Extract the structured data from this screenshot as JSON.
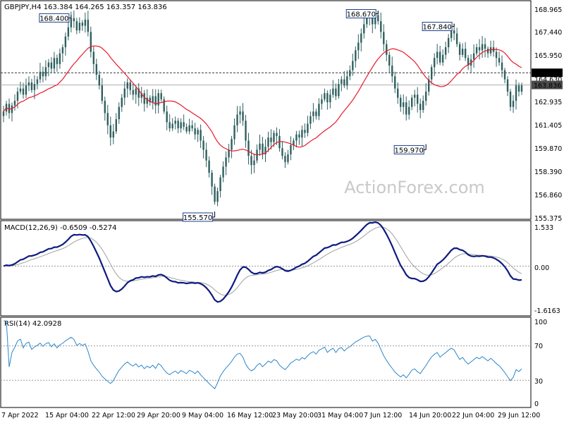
{
  "chart_data": {
    "type": "candlestick",
    "watermark": "ActionForex.com",
    "x_ticks": [
      "7 Apr 2022",
      "15 Apr 04:00",
      "22 Apr 12:00",
      "29 Apr 20:00",
      "9 May 04:00",
      "16 May 12:00",
      "23 May 20:00",
      "31 May 04:00",
      "7 Jun 12:00",
      "14 Jun 20:00",
      "22 Jun 04:00",
      "29 Jun 12:00"
    ],
    "price_panel": {
      "header": "GBPJPY,H4  163.384 164.265 163.357 163.836",
      "y_ticks": [
        "168.965",
        "167.440",
        "165.950",
        "164.630",
        "162.935",
        "161.405",
        "159.870",
        "158.390",
        "156.860",
        "155.375"
      ],
      "ylim": [
        155.2,
        169.2
      ],
      "current_price": 163.836,
      "current_price_label": "163.836",
      "level_line": 164.63,
      "level_line_label": "164.630",
      "swing_labels": [
        {
          "text": "168.400",
          "value": 168.4,
          "bar": 24
        },
        {
          "text": "155.570",
          "value": 155.57,
          "bar": 75
        },
        {
          "text": "168.670",
          "value": 168.67,
          "bar": 133
        },
        {
          "text": "159.970",
          "value": 159.97,
          "bar": 150
        },
        {
          "text": "167.840",
          "value": 167.84,
          "bar": 160
        }
      ],
      "ma_color": "#e8192c",
      "candle_color": "#2f5f5f",
      "closes": [
        162.1,
        162.6,
        162.0,
        162.5,
        162.8,
        163.4,
        163.6,
        163.2,
        163.8,
        164.0,
        163.5,
        163.9,
        164.2,
        164.7,
        164.4,
        165.0,
        165.3,
        164.9,
        165.6,
        165.2,
        165.9,
        166.3,
        167.0,
        167.6,
        168.2,
        168.0,
        167.4,
        167.9,
        167.7,
        168.1,
        167.3,
        166.0,
        165.2,
        164.5,
        163.8,
        162.8,
        162.0,
        161.2,
        160.4,
        160.8,
        161.6,
        162.4,
        163.0,
        163.6,
        164.0,
        163.5,
        163.2,
        163.6,
        163.0,
        163.3,
        162.6,
        163.0,
        162.7,
        163.1,
        162.5,
        163.3,
        162.9,
        162.1,
        161.4,
        161.0,
        161.3,
        161.5,
        161.0,
        161.4,
        161.1,
        160.8,
        161.2,
        161.0,
        160.6,
        160.9,
        160.2,
        159.6,
        158.9,
        158.1,
        157.2,
        156.2,
        156.9,
        157.8,
        158.5,
        159.1,
        159.6,
        160.3,
        161.2,
        161.9,
        162.1,
        161.5,
        160.2,
        159.2,
        158.6,
        158.9,
        159.6,
        160.0,
        159.3,
        159.8,
        160.4,
        160.1,
        160.7,
        160.5,
        159.7,
        159.2,
        158.8,
        159.3,
        159.9,
        160.2,
        160.6,
        160.4,
        160.9,
        160.7,
        161.3,
        161.8,
        162.1,
        161.8,
        162.6,
        162.9,
        163.3,
        162.7,
        163.2,
        163.6,
        163.1,
        163.9,
        164.2,
        163.8,
        164.4,
        164.8,
        165.4,
        166.1,
        166.6,
        167.2,
        167.8,
        168.2,
        168.3,
        167.8,
        168.4,
        168.0,
        167.3,
        166.5,
        165.8,
        165.1,
        164.4,
        163.6,
        163.0,
        162.4,
        162.7,
        161.9,
        162.4,
        163.0,
        163.2,
        162.6,
        162.2,
        162.8,
        163.4,
        164.2,
        165.0,
        165.6,
        166.0,
        165.3,
        165.8,
        166.3,
        166.9,
        167.4,
        167.2,
        166.5,
        165.8,
        166.2,
        165.6,
        165.1,
        165.5,
        165.9,
        166.3,
        166.1,
        166.5,
        166.2,
        165.9,
        166.3,
        166.0,
        165.6,
        165.3,
        164.8,
        164.2,
        163.4,
        162.4,
        162.8,
        163.8,
        163.4,
        163.8
      ],
      "ma_period": 20
    },
    "macd_panel": {
      "header": "MACD(12,26,9) -0.6509 -0.5274",
      "y_ticks": [
        "1.533",
        "0.00",
        "-1.6163"
      ],
      "ylim": [
        -1.95,
        1.75
      ],
      "zero_label": "0.00",
      "main_color": "#0d1a80",
      "signal_color": "#a0a0a0"
    },
    "rsi_panel": {
      "header": "RSI(14) 42.0928",
      "y_ticks": [
        "100",
        "70",
        "30",
        "0"
      ],
      "ylim": [
        0,
        100
      ],
      "levels": [
        70,
        30
      ],
      "line_color": "#2c86c9",
      "period": 14
    }
  }
}
